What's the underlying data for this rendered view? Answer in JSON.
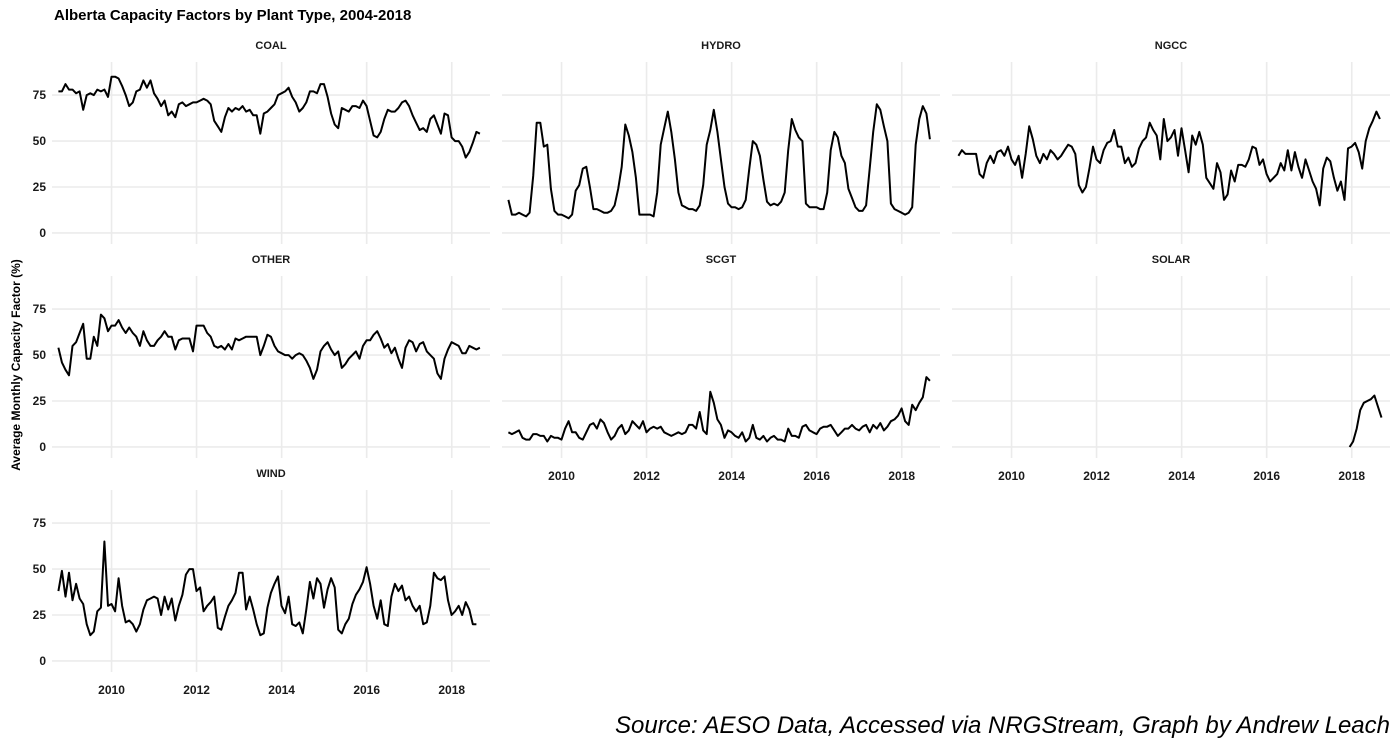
{
  "title": "Alberta Capacity Factors by Plant Type, 2004-2018",
  "ylabel": "Average Monthly Capacity Factor (%)",
  "source": "Source: AESO Data, Accessed via NRGStream, Graph by Andrew Leach",
  "chart_data": {
    "type": "line",
    "layout": "facet-grid-3-columns",
    "xlim": [
      2008.6,
      2018.9
    ],
    "ylim": [
      -6,
      93
    ],
    "x_ticks": [
      2010,
      2012,
      2014,
      2016,
      2018
    ],
    "y_ticks": [
      0,
      25,
      50,
      75
    ],
    "grid": true,
    "line_color": "#000000",
    "panels": [
      {
        "name": "COAL",
        "x_start": 2008.75,
        "x_step": 0.0833,
        "values": [
          77,
          77,
          81,
          78,
          78,
          76,
          77,
          67,
          75,
          76,
          75,
          78,
          77,
          78,
          74,
          85,
          85,
          84,
          80,
          75,
          69,
          71,
          77,
          78,
          83,
          79,
          83,
          76,
          73,
          69,
          72,
          64,
          66,
          63,
          70,
          71,
          69,
          70,
          71,
          71,
          72,
          73,
          72,
          70,
          61,
          58,
          55,
          63,
          68,
          66,
          68,
          67,
          69,
          66,
          67,
          64,
          64,
          54,
          65,
          66,
          68,
          70,
          75,
          76,
          77,
          79,
          74,
          71,
          66,
          68,
          71,
          77,
          77,
          76,
          81,
          81,
          74,
          65,
          59,
          57,
          68,
          67,
          66,
          69,
          69,
          68,
          72,
          69,
          61,
          53,
          52,
          55,
          62,
          67,
          66,
          66,
          68,
          71,
          72,
          69,
          64,
          60,
          56,
          57,
          55,
          62,
          64,
          59,
          54,
          65,
          64,
          52,
          50,
          50,
          47,
          41,
          44,
          49,
          55,
          54
        ]
      },
      {
        "name": "HYDRO",
        "x_start": 2008.75,
        "x_step": 0.0833,
        "values": [
          18,
          10,
          10,
          11,
          10,
          9,
          11,
          31,
          60,
          60,
          47,
          48,
          24,
          12,
          10,
          10,
          9,
          8,
          10,
          23,
          26,
          35,
          36,
          25,
          13,
          13,
          12,
          11,
          11,
          12,
          15,
          24,
          36,
          59,
          53,
          44,
          30,
          10,
          10,
          10,
          10,
          9,
          22,
          48,
          57,
          66,
          55,
          40,
          22,
          15,
          14,
          13,
          13,
          12,
          15,
          26,
          48,
          56,
          67,
          55,
          40,
          25,
          16,
          14,
          14,
          13,
          14,
          18,
          35,
          50,
          48,
          42,
          29,
          17,
          15,
          16,
          15,
          17,
          22,
          45,
          62,
          56,
          52,
          50,
          16,
          14,
          14,
          14,
          13,
          13,
          22,
          45,
          55,
          52,
          42,
          38,
          24,
          19,
          14,
          12,
          12,
          15,
          35,
          55,
          70,
          67,
          58,
          50,
          16,
          13,
          12,
          11,
          10,
          11,
          14,
          48,
          62,
          69,
          65,
          51
        ]
      },
      {
        "name": "NGCC",
        "x_start": 2008.75,
        "x_step": 0.0833,
        "values": [
          42,
          45,
          43,
          43,
          43,
          43,
          32,
          30,
          38,
          42,
          38,
          44,
          45,
          42,
          47,
          40,
          37,
          42,
          30,
          43,
          58,
          51,
          42,
          38,
          43,
          40,
          45,
          43,
          40,
          42,
          45,
          48,
          47,
          43,
          26,
          22,
          25,
          35,
          47,
          40,
          38,
          45,
          49,
          50,
          56,
          47,
          47,
          38,
          41,
          36,
          38,
          46,
          50,
          52,
          60,
          56,
          53,
          40,
          62,
          50,
          52,
          56,
          42,
          57,
          45,
          33,
          53,
          48,
          55,
          48,
          30,
          27,
          24,
          38,
          33,
          18,
          21,
          34,
          28,
          37,
          37,
          36,
          40,
          47,
          46,
          37,
          40,
          32,
          28,
          30,
          32,
          38,
          34,
          45,
          34,
          44,
          36,
          30,
          40,
          34,
          28,
          24,
          15,
          35,
          41,
          39,
          30,
          23,
          28,
          18,
          46,
          47,
          49,
          44,
          35,
          50,
          57,
          61,
          66,
          62
        ]
      },
      {
        "name": "OTHER",
        "x_start": 2008.75,
        "x_step": 0.0833,
        "values": [
          54,
          46,
          42,
          39,
          55,
          57,
          62,
          67,
          48,
          48,
          60,
          55,
          72,
          70,
          63,
          66,
          66,
          69,
          65,
          62,
          65,
          62,
          60,
          55,
          63,
          58,
          55,
          55,
          58,
          60,
          63,
          60,
          60,
          53,
          58,
          59,
          59,
          59,
          52,
          66,
          66,
          66,
          62,
          60,
          55,
          54,
          55,
          53,
          56,
          53,
          59,
          58,
          59,
          60,
          60,
          60,
          60,
          50,
          55,
          61,
          60,
          55,
          52,
          51,
          50,
          50,
          48,
          50,
          51,
          50,
          47,
          43,
          37,
          42,
          52,
          55,
          57,
          53,
          50,
          52,
          43,
          45,
          48,
          50,
          52,
          48,
          55,
          58,
          58,
          61,
          63,
          59,
          54,
          56,
          51,
          54,
          48,
          43,
          54,
          58,
          57,
          52,
          56,
          57,
          52,
          50,
          48,
          40,
          37,
          48,
          53,
          57,
          56,
          55,
          51,
          51,
          55,
          54,
          53,
          54
        ]
      },
      {
        "name": "SCGT",
        "x_start": 2008.75,
        "x_step": 0.0833,
        "values": [
          8,
          7,
          8,
          9,
          5,
          4,
          4,
          7,
          7,
          6,
          6,
          3,
          6,
          5,
          5,
          4,
          10,
          14,
          8,
          8,
          5,
          4,
          8,
          12,
          13,
          10,
          15,
          13,
          8,
          4,
          6,
          10,
          12,
          7,
          9,
          14,
          12,
          10,
          14,
          8,
          10,
          11,
          10,
          11,
          8,
          7,
          6,
          7,
          8,
          7,
          8,
          12,
          12,
          10,
          19,
          9,
          7,
          30,
          24,
          15,
          12,
          5,
          9,
          8,
          6,
          5,
          8,
          3,
          5,
          12,
          5,
          4,
          6,
          3,
          5,
          6,
          4,
          4,
          3,
          10,
          6,
          6,
          5,
          11,
          12,
          9,
          8,
          7,
          10,
          11,
          11,
          12,
          9,
          6,
          8,
          10,
          10,
          12,
          10,
          9,
          11,
          12,
          8,
          12,
          10,
          13,
          9,
          11,
          14,
          15,
          17,
          21,
          14,
          12,
          23,
          20,
          24,
          27,
          38,
          36
        ]
      },
      {
        "name": "SOLAR",
        "x_start": 2017.95,
        "x_step": 0.0833,
        "values": [
          0,
          3,
          10,
          20,
          24,
          25,
          26,
          28,
          22,
          16
        ]
      },
      {
        "name": "WIND",
        "x_start": 2008.75,
        "x_step": 0.0833,
        "values": [
          38,
          49,
          35,
          48,
          33,
          42,
          34,
          31,
          20,
          14,
          16,
          27,
          29,
          65,
          30,
          31,
          27,
          45,
          30,
          21,
          22,
          20,
          16,
          20,
          28,
          33,
          34,
          35,
          34,
          25,
          35,
          28,
          34,
          22,
          30,
          36,
          47,
          50,
          50,
          38,
          40,
          27,
          30,
          32,
          35,
          18,
          17,
          24,
          30,
          33,
          37,
          48,
          48,
          28,
          35,
          28,
          20,
          14,
          15,
          29,
          37,
          42,
          46,
          30,
          26,
          35,
          20,
          19,
          21,
          15,
          28,
          43,
          34,
          45,
          42,
          29,
          39,
          45,
          40,
          17,
          15,
          20,
          23,
          31,
          36,
          39,
          43,
          51,
          42,
          30,
          23,
          33,
          20,
          19,
          35,
          42,
          38,
          41,
          33,
          35,
          30,
          27,
          30,
          20,
          21,
          30,
          48,
          45,
          44,
          46,
          33,
          25,
          27,
          30,
          25,
          32,
          28,
          20,
          20
        ]
      }
    ]
  }
}
